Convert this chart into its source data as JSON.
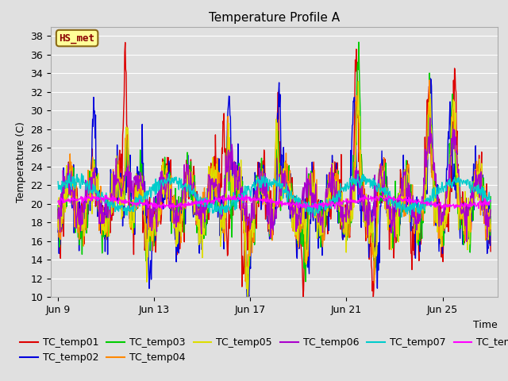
{
  "title": "Temperature Profile A",
  "xlabel": "Time",
  "ylabel": "Temperature (C)",
  "ylim": [
    10,
    39
  ],
  "yticks": [
    10,
    12,
    14,
    16,
    18,
    20,
    22,
    24,
    26,
    28,
    30,
    32,
    34,
    36,
    38
  ],
  "series_colors": {
    "TC_temp01": "#dd0000",
    "TC_temp02": "#0000dd",
    "TC_temp03": "#00cc00",
    "TC_temp04": "#ff8800",
    "TC_temp05": "#dddd00",
    "TC_temp06": "#aa00cc",
    "TC_temp07": "#00cccc",
    "TC_temp08": "#ff00ff"
  },
  "annotation_text": "HS_met",
  "annotation_color": "#8b0000",
  "annotation_bg": "#ffff99",
  "annotation_edge": "#8b6914",
  "grid_color": "#ffffff",
  "background_color": "#e0e0e0",
  "title_fontsize": 11,
  "axis_label_fontsize": 9,
  "tick_fontsize": 9,
  "legend_fontsize": 9,
  "linewidth": 1.0,
  "xtick_labels": [
    "Jun 9",
    "Jun 13",
    "Jun 17",
    "Jun 21",
    "Jun 25"
  ],
  "xtick_positions": [
    9,
    13,
    17,
    21,
    25
  ],
  "xlim": [
    8.7,
    27.3
  ]
}
